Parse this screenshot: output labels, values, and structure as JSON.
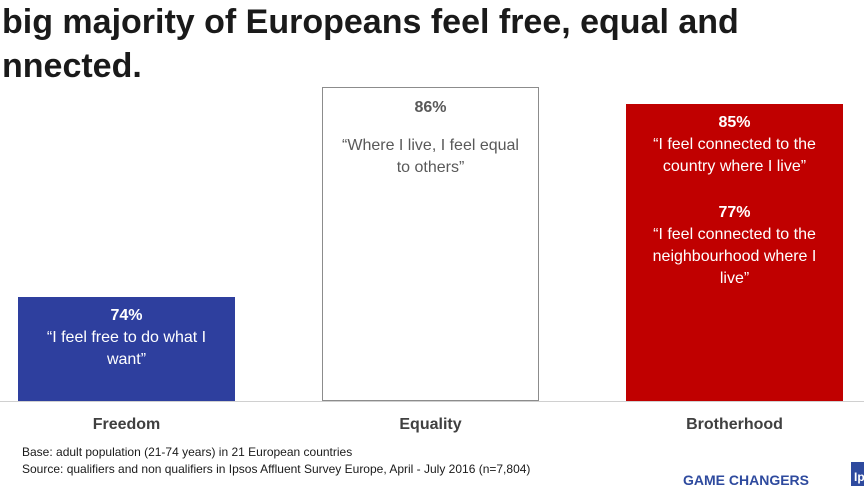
{
  "title": [
    "big majority of Europeans feel free, equal and",
    "nnected."
  ],
  "panels": [
    {
      "category": "Freedom",
      "items": [
        {
          "value": "74%",
          "quote": "“I feel free to do what I want”"
        }
      ]
    },
    {
      "category": "Equality",
      "items": [
        {
          "value": "86%",
          "quote": "“Where I live, I feel equal to others”"
        }
      ]
    },
    {
      "category": "Brotherhood",
      "items": [
        {
          "value": "85%",
          "quote": "“I feel connected to the country where I live”"
        },
        {
          "value": "77%",
          "quote": "“I feel connected to the neighbourhood where I live”"
        }
      ]
    }
  ],
  "footnotes": [
    "Base: adult population (21-74 years) in 21 European countries",
    "Source: qualifiers and non qualifiers in Ipsos Affluent Survey Europe, April - July 2016 (n=7,804)"
  ],
  "footer": {
    "brand": "GAME CHANGERS",
    "logo": "Ip"
  }
}
